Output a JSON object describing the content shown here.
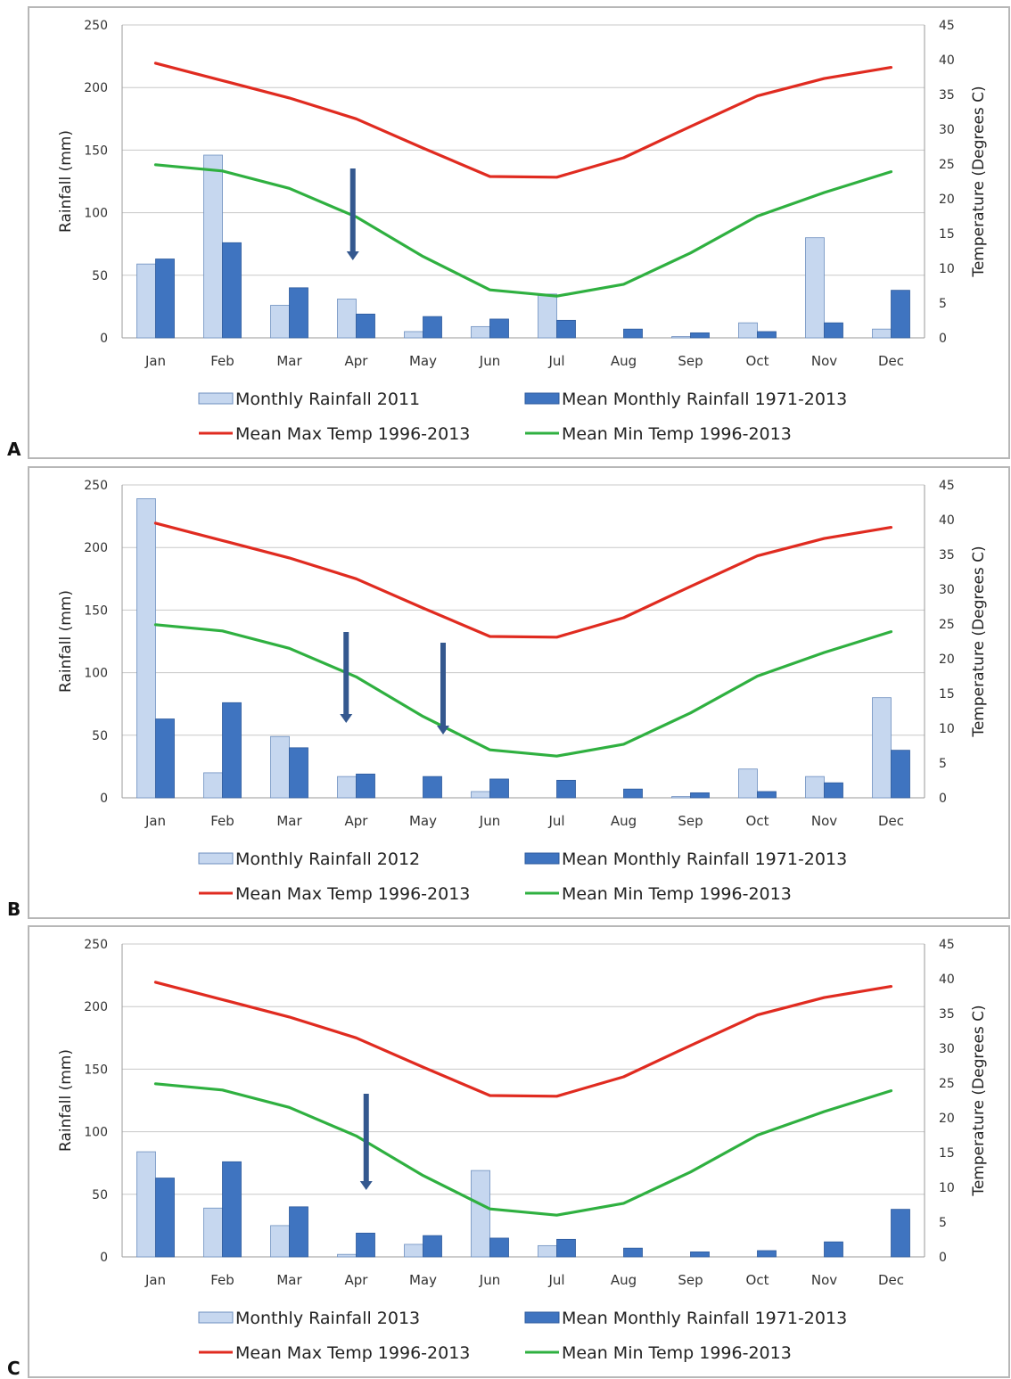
{
  "colors": {
    "rain_year": "#c6d7ef",
    "rain_year_stroke": "#6d8fbf",
    "rain_mean": "#3f74c0",
    "rain_mean_stroke": "#2d5a9c",
    "max_temp": "#e02b20",
    "min_temp": "#2fb040",
    "arrow": "#34588f",
    "grid": "#c8c8c8",
    "frame": "#b7b7b7"
  },
  "chart_data": [
    {
      "type": "bar",
      "panel_label": "A",
      "categories": [
        "Jan",
        "Feb",
        "Mar",
        "Apr",
        "May",
        "Jun",
        "Jul",
        "Aug",
        "Sep",
        "Oct",
        "Nov",
        "Dec"
      ],
      "ylabel": "Rainfall (mm)",
      "y2label": "Temperature (Degrees C)",
      "ylim": [
        0,
        250
      ],
      "y2lim": [
        0,
        45
      ],
      "yticks": [
        "0",
        "50",
        "100",
        "150",
        "200",
        "250"
      ],
      "y2ticks": [
        "0",
        "5",
        "10",
        "15",
        "20",
        "25",
        "30",
        "35",
        "40",
        "45"
      ],
      "grid": true,
      "legend_position": "bottom",
      "series": [
        {
          "name": "Monthly Rainfall 2011",
          "type": "bar",
          "axis": "left",
          "values": [
            59,
            146,
            26,
            31,
            5,
            9,
            35,
            0,
            1,
            12,
            80,
            7
          ]
        },
        {
          "name": "Mean Monthly Rainfall 1971-2013",
          "type": "bar",
          "axis": "left",
          "values": [
            63,
            76,
            40,
            19,
            17,
            15,
            14,
            7,
            4,
            5,
            12,
            38
          ]
        },
        {
          "name": "Mean Max Temp 1996-2013",
          "type": "line",
          "axis": "right",
          "values": [
            39.5,
            37,
            34.5,
            31.5,
            27.3,
            23.2,
            23.1,
            25.9,
            30.4,
            34.8,
            37.3,
            38.9
          ]
        },
        {
          "name": "Mean Min Temp 1996-2013",
          "type": "line",
          "axis": "right",
          "values": [
            24.9,
            24,
            21.5,
            17.4,
            11.7,
            6.9,
            6,
            7.7,
            12.2,
            17.5,
            20.9,
            23.9
          ]
        }
      ],
      "arrows_month_position": [
        3.45
      ]
    },
    {
      "type": "bar",
      "panel_label": "B",
      "categories": [
        "Jan",
        "Feb",
        "Mar",
        "Apr",
        "May",
        "Jun",
        "Jul",
        "Aug",
        "Sep",
        "Oct",
        "Nov",
        "Dec"
      ],
      "ylabel": "Rainfall (mm)",
      "y2label": "Temperature (Degrees C)",
      "ylim": [
        0,
        250
      ],
      "y2lim": [
        0,
        45
      ],
      "yticks": [
        "0",
        "50",
        "100",
        "150",
        "200",
        "250"
      ],
      "y2ticks": [
        "0",
        "5",
        "10",
        "15",
        "20",
        "25",
        "30",
        "35",
        "40",
        "45"
      ],
      "grid": true,
      "legend_position": "bottom",
      "series": [
        {
          "name": "Monthly Rainfall 2012",
          "type": "bar",
          "axis": "left",
          "values": [
            239,
            20,
            49,
            17,
            0,
            5,
            0,
            0,
            1,
            23,
            17,
            80
          ]
        },
        {
          "name": "Mean Monthly Rainfall 1971-2013",
          "type": "bar",
          "axis": "left",
          "values": [
            63,
            76,
            40,
            19,
            17,
            15,
            14,
            7,
            4,
            5,
            12,
            38
          ]
        },
        {
          "name": "Mean Max Temp 1996-2013",
          "type": "line",
          "axis": "right",
          "values": [
            39.5,
            37,
            34.5,
            31.5,
            27.3,
            23.2,
            23.1,
            25.9,
            30.4,
            34.8,
            37.3,
            38.9
          ]
        },
        {
          "name": "Mean Min Temp 1996-2013",
          "type": "line",
          "axis": "right",
          "values": [
            24.9,
            24,
            21.5,
            17.4,
            11.7,
            6.9,
            6,
            7.7,
            12.2,
            17.5,
            20.9,
            23.9
          ]
        }
      ],
      "arrows_month_position": [
        3.35,
        4.8
      ]
    },
    {
      "type": "bar",
      "panel_label": "C",
      "categories": [
        "Jan",
        "Feb",
        "Mar",
        "Apr",
        "May",
        "Jun",
        "Jul",
        "Aug",
        "Sep",
        "Oct",
        "Nov",
        "Dec"
      ],
      "ylabel": "Rainfall (mm)",
      "y2label": "Temperature (Degrees C)",
      "ylim": [
        0,
        250
      ],
      "y2lim": [
        0,
        45
      ],
      "yticks": [
        "0",
        "50",
        "100",
        "150",
        "200",
        "250"
      ],
      "y2ticks": [
        "0",
        "5",
        "10",
        "15",
        "20",
        "25",
        "30",
        "35",
        "40",
        "45"
      ],
      "grid": true,
      "legend_position": "bottom",
      "series": [
        {
          "name": "Monthly Rainfall 2013",
          "type": "bar",
          "axis": "left",
          "values": [
            84,
            39,
            25,
            2,
            10,
            69,
            9,
            0,
            0,
            0,
            0,
            0
          ]
        },
        {
          "name": "Mean Monthly Rainfall 1971-2013",
          "type": "bar",
          "axis": "left",
          "values": [
            63,
            76,
            40,
            19,
            17,
            15,
            14,
            7,
            4,
            5,
            12,
            38
          ]
        },
        {
          "name": "Mean Max Temp 1996-2013",
          "type": "line",
          "axis": "right",
          "values": [
            39.5,
            37,
            34.5,
            31.5,
            27.3,
            23.2,
            23.1,
            25.9,
            30.4,
            34.8,
            37.3,
            38.9
          ]
        },
        {
          "name": "Mean Min Temp 1996-2013",
          "type": "line",
          "axis": "right",
          "values": [
            24.9,
            24,
            21.5,
            17.4,
            11.7,
            6.9,
            6,
            7.7,
            12.2,
            17.5,
            20.9,
            23.9
          ]
        }
      ],
      "arrows_month_position": [
        3.65
      ]
    }
  ]
}
